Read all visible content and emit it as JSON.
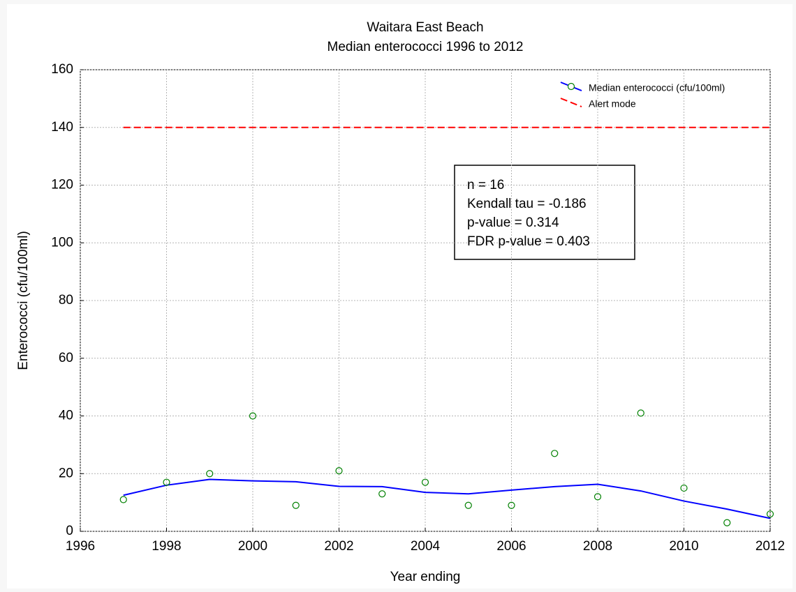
{
  "chart_data": {
    "type": "scatter",
    "title": "Waitara East Beach",
    "subtitle": "Median enterococci 1996 to 2012",
    "x_label": "Year ending",
    "y_label": "Enterococci (cfu/100ml)",
    "x": [
      1997,
      1998,
      1999,
      2000,
      2001,
      2002,
      2003,
      2004,
      2005,
      2006,
      2007,
      2008,
      2009,
      2010,
      2011,
      2012
    ],
    "series": [
      {
        "name": "Median enterococci (cfu/100ml)",
        "color": "#008000",
        "fit_color": "#0000ff",
        "values": [
          11,
          17,
          20,
          40,
          9,
          21,
          13,
          17,
          9,
          9,
          27,
          12,
          41,
          15,
          3,
          6
        ],
        "fit": [
          12.5,
          16,
          18,
          17.5,
          17.2,
          15.6,
          15.5,
          13.5,
          13,
          14.3,
          15.5,
          16.3,
          14,
          10.5,
          7.7,
          4.5
        ]
      }
    ],
    "alert": {
      "name": "Alert mode",
      "color": "#ff0000",
      "value": 140
    },
    "annotations": [
      "n = 16",
      "Kendall tau = -0.186",
      "p-value = 0.314",
      "FDR p-value = 0.403"
    ],
    "xlim": [
      1996,
      2012
    ],
    "xticks": [
      1996,
      1998,
      2000,
      2002,
      2004,
      2006,
      2008,
      2010,
      2012
    ],
    "ylim": [
      0,
      160
    ],
    "yticks": [
      0,
      20,
      40,
      60,
      80,
      100,
      120,
      140,
      160
    ],
    "grid": true
  }
}
